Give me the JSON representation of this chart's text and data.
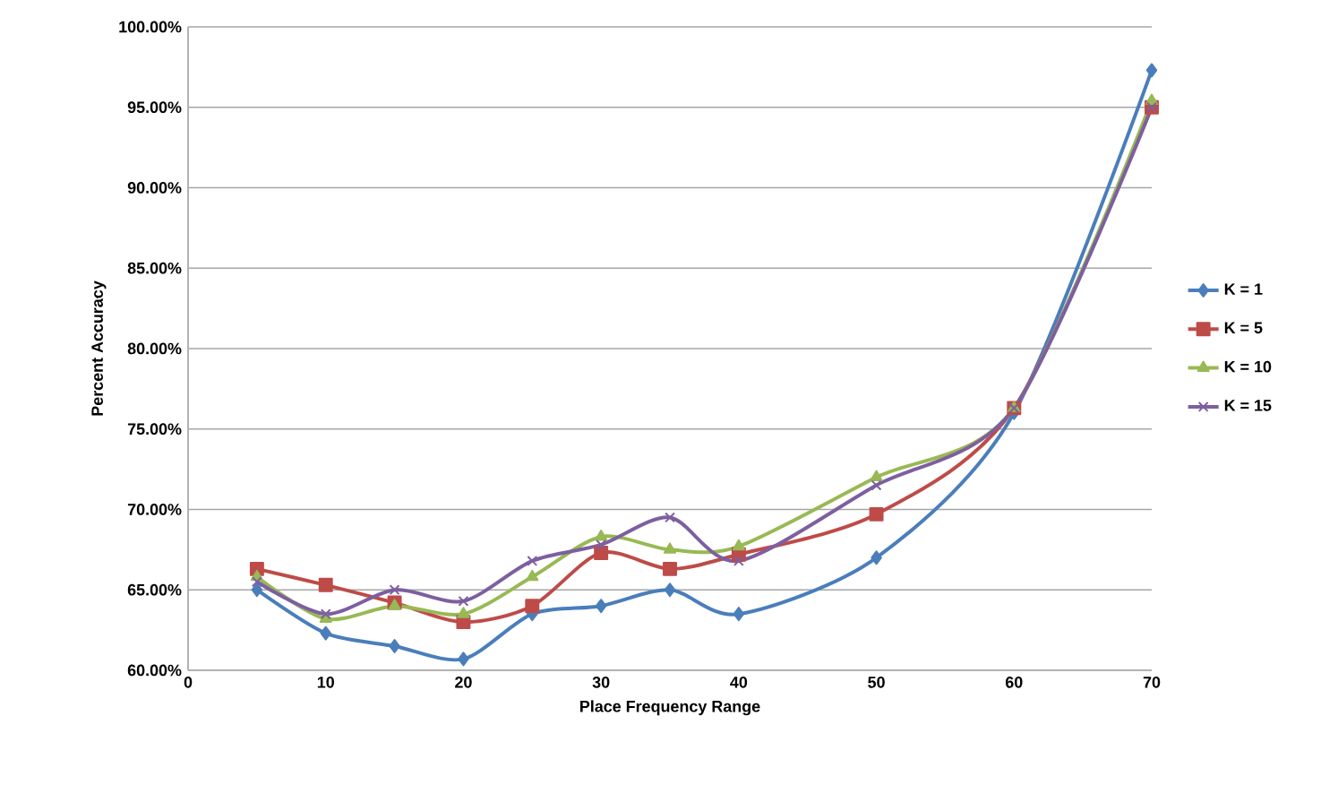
{
  "chart_data": {
    "type": "line",
    "xlabel": "Place Frequency Range",
    "ylabel": "Percent Accuracy",
    "x": [
      5,
      10,
      15,
      20,
      25,
      30,
      35,
      40,
      50,
      60,
      70
    ],
    "series": [
      {
        "name": "K = 1",
        "color": "#4a7ebb",
        "marker": "diamond",
        "values": [
          65.0,
          62.3,
          61.5,
          60.7,
          63.5,
          64.0,
          65.0,
          63.5,
          67.0,
          76.0,
          97.3
        ]
      },
      {
        "name": "K = 5",
        "color": "#be4b48",
        "marker": "square",
        "values": [
          66.3,
          65.3,
          64.2,
          63.0,
          64.0,
          67.3,
          66.3,
          67.2,
          69.7,
          76.3,
          95.0
        ]
      },
      {
        "name": "K = 10",
        "color": "#98b954",
        "marker": "triangle",
        "values": [
          65.8,
          63.2,
          64.0,
          63.5,
          65.8,
          68.3,
          67.5,
          67.7,
          72.0,
          76.3,
          95.4
        ]
      },
      {
        "name": "K = 15",
        "color": "#7d5fa0",
        "marker": "cross",
        "values": [
          65.5,
          63.5,
          65.0,
          64.3,
          66.8,
          67.8,
          69.5,
          66.8,
          71.5,
          76.3,
          95.0
        ]
      }
    ],
    "xlim": [
      0,
      70
    ],
    "xticks": [
      0,
      10,
      20,
      30,
      40,
      50,
      60,
      70
    ],
    "ylim": [
      60,
      100
    ],
    "yticks": [
      {
        "value": 60,
        "label": "60.00%"
      },
      {
        "value": 65,
        "label": "65.00%"
      },
      {
        "value": 70,
        "label": "70.00%"
      },
      {
        "value": 75,
        "label": "75.00%"
      },
      {
        "value": 80,
        "label": "80.00%"
      },
      {
        "value": 85,
        "label": "85.00%"
      },
      {
        "value": 90,
        "label": "90.00%"
      },
      {
        "value": 95,
        "label": "95.00%"
      },
      {
        "value": 100,
        "label": "100.00%"
      }
    ],
    "grid": "y",
    "legend": "right",
    "line_style": "solid"
  }
}
